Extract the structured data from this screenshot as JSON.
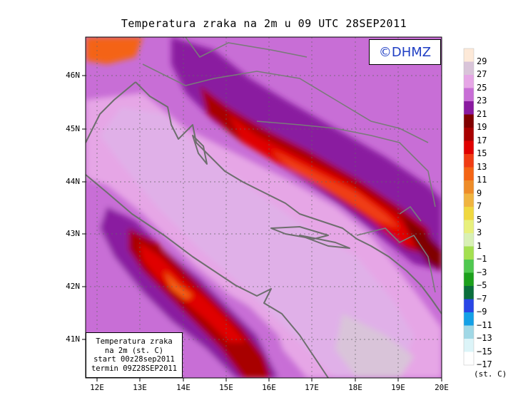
{
  "title": "Temperatura zraka na 2m u 09 UTC 28SEP2011",
  "credit": "©DHMZ",
  "info_box": {
    "line1": "Temperatura zraka",
    "line2": "na 2m (st. C)",
    "line3": "start 00z28sep2011",
    "line4": "termin 09Z28SEP2011"
  },
  "axes": {
    "x_ticks": [
      "12E",
      "13E",
      "14E",
      "15E",
      "16E",
      "17E",
      "18E",
      "19E",
      "20E"
    ],
    "y_ticks": [
      "46N",
      "45N",
      "44N",
      "43N",
      "42N",
      "41N"
    ]
  },
  "legend": {
    "unit": "(st. C)",
    "labels": [
      "29",
      "27",
      "25",
      "23",
      "21",
      "19",
      "17",
      "15",
      "13",
      "11",
      "9",
      "7",
      "5",
      "3",
      "1",
      "−1",
      "−3",
      "−5",
      "−7",
      "−9",
      "−11",
      "−13",
      "−15",
      "−17"
    ],
    "colors": [
      "#fde9d8",
      "#d9c4d9",
      "#e6a6e6",
      "#c86ed6",
      "#8a1aa0",
      "#800000",
      "#a80000",
      "#e00000",
      "#f03c14",
      "#f46414",
      "#ee8c28",
      "#f0b440",
      "#f0d840",
      "#e8f07c",
      "#d8f0b4",
      "#a4e050",
      "#50c850",
      "#1ca01c",
      "#0a6e3c",
      "#2846e6",
      "#14a0e6",
      "#a0d8e6",
      "#dcf4f8",
      "#ffffff"
    ]
  }
}
